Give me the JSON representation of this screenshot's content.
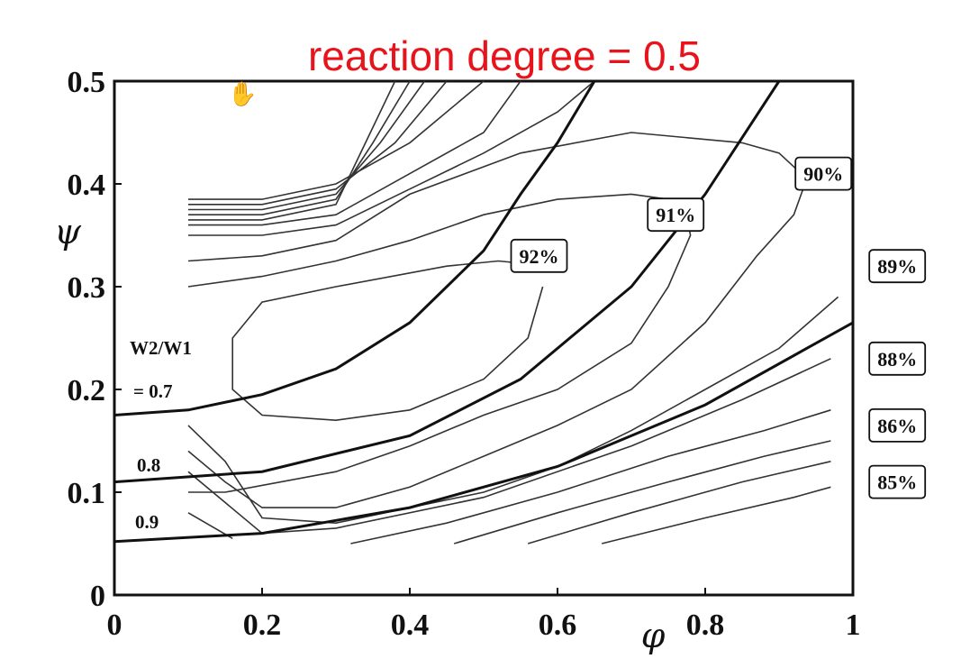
{
  "chart_data": {
    "type": "line",
    "title": "reaction degree = 0.5",
    "xlabel": "φ",
    "ylabel": "ψ",
    "xlim": [
      0,
      1
    ],
    "ylim": [
      0,
      0.5
    ],
    "x_ticks": [
      "0",
      "0.2",
      "0.4",
      "0.6",
      "0.8",
      "1"
    ],
    "y_ticks": [
      "0",
      "0.1",
      "0.2",
      "0.3",
      "0.4",
      "0.5"
    ],
    "grid": false,
    "annotations": {
      "ratio_header": "W2/W1",
      "ratio_first": "= 0.7",
      "ratio_second": "0.8",
      "ratio_third": "0.9"
    },
    "ratio_curves": [
      {
        "label": "W2/W1 = 0.7",
        "points": [
          [
            0,
            0.175
          ],
          [
            0.1,
            0.18
          ],
          [
            0.2,
            0.195
          ],
          [
            0.3,
            0.22
          ],
          [
            0.4,
            0.265
          ],
          [
            0.5,
            0.335
          ],
          [
            0.55,
            0.39
          ],
          [
            0.6,
            0.44
          ],
          [
            0.65,
            0.5
          ]
        ]
      },
      {
        "label": "0.8",
        "points": [
          [
            0,
            0.11
          ],
          [
            0.2,
            0.12
          ],
          [
            0.4,
            0.155
          ],
          [
            0.55,
            0.21
          ],
          [
            0.7,
            0.3
          ],
          [
            0.8,
            0.39
          ],
          [
            0.9,
            0.5
          ]
        ]
      },
      {
        "label": "0.9",
        "points": [
          [
            0,
            0.052
          ],
          [
            0.2,
            0.06
          ],
          [
            0.4,
            0.085
          ],
          [
            0.6,
            0.125
          ],
          [
            0.8,
            0.185
          ],
          [
            1.0,
            0.265
          ]
        ]
      }
    ],
    "efficiency_labels": [
      "92%",
      "91%",
      "90%",
      "89%",
      "88%",
      "86%",
      "85%"
    ],
    "efficiency_contours": [
      {
        "label": "92%",
        "points": [
          [
            0.59,
            0.32
          ],
          [
            0.52,
            0.325
          ],
          [
            0.45,
            0.32
          ],
          [
            0.3,
            0.3
          ],
          [
            0.2,
            0.285
          ],
          [
            0.16,
            0.25
          ],
          [
            0.16,
            0.2
          ],
          [
            0.2,
            0.175
          ],
          [
            0.3,
            0.17
          ],
          [
            0.4,
            0.18
          ],
          [
            0.5,
            0.21
          ],
          [
            0.56,
            0.25
          ],
          [
            0.58,
            0.3
          ]
        ]
      },
      {
        "label": "91%",
        "points": [
          [
            0.75,
            0.385
          ],
          [
            0.7,
            0.39
          ],
          [
            0.6,
            0.385
          ],
          [
            0.5,
            0.37
          ],
          [
            0.4,
            0.345
          ],
          [
            0.3,
            0.325
          ],
          [
            0.2,
            0.31
          ],
          [
            0.1,
            0.3
          ],
          null,
          [
            0.1,
            0.1
          ],
          [
            0.15,
            0.1
          ],
          [
            0.3,
            0.12
          ],
          [
            0.4,
            0.145
          ],
          [
            0.5,
            0.175
          ],
          [
            0.6,
            0.2
          ],
          [
            0.7,
            0.245
          ],
          [
            0.75,
            0.3
          ],
          [
            0.78,
            0.35
          ],
          [
            0.77,
            0.385
          ]
        ]
      },
      {
        "label": "90%",
        "points": [
          [
            0.93,
            0.41
          ],
          [
            0.9,
            0.43
          ],
          [
            0.85,
            0.44
          ],
          [
            0.7,
            0.45
          ],
          [
            0.55,
            0.43
          ],
          [
            0.4,
            0.39
          ],
          [
            0.3,
            0.345
          ],
          [
            0.2,
            0.33
          ],
          [
            0.1,
            0.325
          ],
          null,
          [
            0.1,
            0.14
          ],
          [
            0.15,
            0.11
          ],
          [
            0.2,
            0.085
          ],
          [
            0.3,
            0.085
          ],
          [
            0.4,
            0.105
          ],
          [
            0.5,
            0.135
          ],
          [
            0.6,
            0.165
          ],
          [
            0.7,
            0.2
          ],
          [
            0.8,
            0.265
          ],
          [
            0.87,
            0.33
          ],
          [
            0.92,
            0.37
          ],
          [
            0.94,
            0.41
          ]
        ]
      },
      {
        "label": "89%",
        "points": [
          [
            0.1,
            0.165
          ],
          [
            0.15,
            0.13
          ],
          [
            0.2,
            0.075
          ],
          [
            0.3,
            0.07
          ],
          [
            0.4,
            0.085
          ],
          [
            0.5,
            0.1
          ],
          [
            0.6,
            0.125
          ],
          [
            0.7,
            0.16
          ],
          [
            0.8,
            0.2
          ],
          [
            0.9,
            0.24
          ],
          [
            0.98,
            0.29
          ]
        ]
      },
      {
        "label": "88%",
        "points": [
          [
            0.1,
            0.12
          ],
          [
            0.2,
            0.06
          ],
          [
            0.3,
            0.065
          ],
          [
            0.5,
            0.095
          ],
          [
            0.7,
            0.145
          ],
          [
            0.85,
            0.19
          ],
          [
            0.97,
            0.23
          ]
        ]
      },
      {
        "label": "86%",
        "points": [
          [
            0.32,
            0.05
          ],
          [
            0.45,
            0.07
          ],
          [
            0.6,
            0.1
          ],
          [
            0.75,
            0.135
          ],
          [
            0.88,
            0.16
          ],
          [
            0.97,
            0.18
          ]
        ]
      },
      {
        "label": "85%",
        "points": [
          [
            0.46,
            0.05
          ],
          [
            0.6,
            0.08
          ],
          [
            0.75,
            0.11
          ],
          [
            0.88,
            0.135
          ],
          [
            0.97,
            0.15
          ]
        ]
      },
      {
        "label": "",
        "points": [
          [
            0.56,
            0.05
          ],
          [
            0.7,
            0.08
          ],
          [
            0.85,
            0.11
          ],
          [
            0.97,
            0.13
          ]
        ]
      },
      {
        "label": "",
        "points": [
          [
            0.66,
            0.05
          ],
          [
            0.8,
            0.075
          ],
          [
            0.92,
            0.095
          ],
          [
            0.97,
            0.105
          ]
        ]
      },
      {
        "label": "",
        "points": [
          [
            0.1,
            0.08
          ],
          [
            0.16,
            0.055
          ]
        ]
      }
    ],
    "upper_fan": [
      {
        "points": [
          [
            0.1,
            0.385
          ],
          [
            0.2,
            0.385
          ],
          [
            0.3,
            0.4
          ],
          [
            0.4,
            0.44
          ],
          [
            0.5,
            0.5
          ]
        ]
      },
      {
        "points": [
          [
            0.1,
            0.38
          ],
          [
            0.2,
            0.38
          ],
          [
            0.3,
            0.395
          ],
          [
            0.38,
            0.44
          ],
          [
            0.45,
            0.5
          ]
        ]
      },
      {
        "points": [
          [
            0.1,
            0.375
          ],
          [
            0.2,
            0.375
          ],
          [
            0.3,
            0.39
          ],
          [
            0.36,
            0.44
          ],
          [
            0.42,
            0.5
          ]
        ]
      },
      {
        "points": [
          [
            0.1,
            0.37
          ],
          [
            0.2,
            0.37
          ],
          [
            0.3,
            0.385
          ],
          [
            0.35,
            0.44
          ],
          [
            0.4,
            0.5
          ]
        ]
      },
      {
        "points": [
          [
            0.1,
            0.365
          ],
          [
            0.2,
            0.365
          ],
          [
            0.3,
            0.38
          ],
          [
            0.34,
            0.44
          ],
          [
            0.38,
            0.5
          ]
        ]
      },
      {
        "points": [
          [
            0.1,
            0.36
          ],
          [
            0.2,
            0.36
          ],
          [
            0.3,
            0.37
          ],
          [
            0.4,
            0.41
          ],
          [
            0.5,
            0.45
          ],
          [
            0.55,
            0.5
          ]
        ]
      },
      {
        "points": [
          [
            0.1,
            0.35
          ],
          [
            0.2,
            0.35
          ],
          [
            0.3,
            0.36
          ],
          [
            0.4,
            0.395
          ],
          [
            0.5,
            0.43
          ],
          [
            0.6,
            0.47
          ],
          [
            0.65,
            0.5
          ]
        ]
      }
    ]
  }
}
